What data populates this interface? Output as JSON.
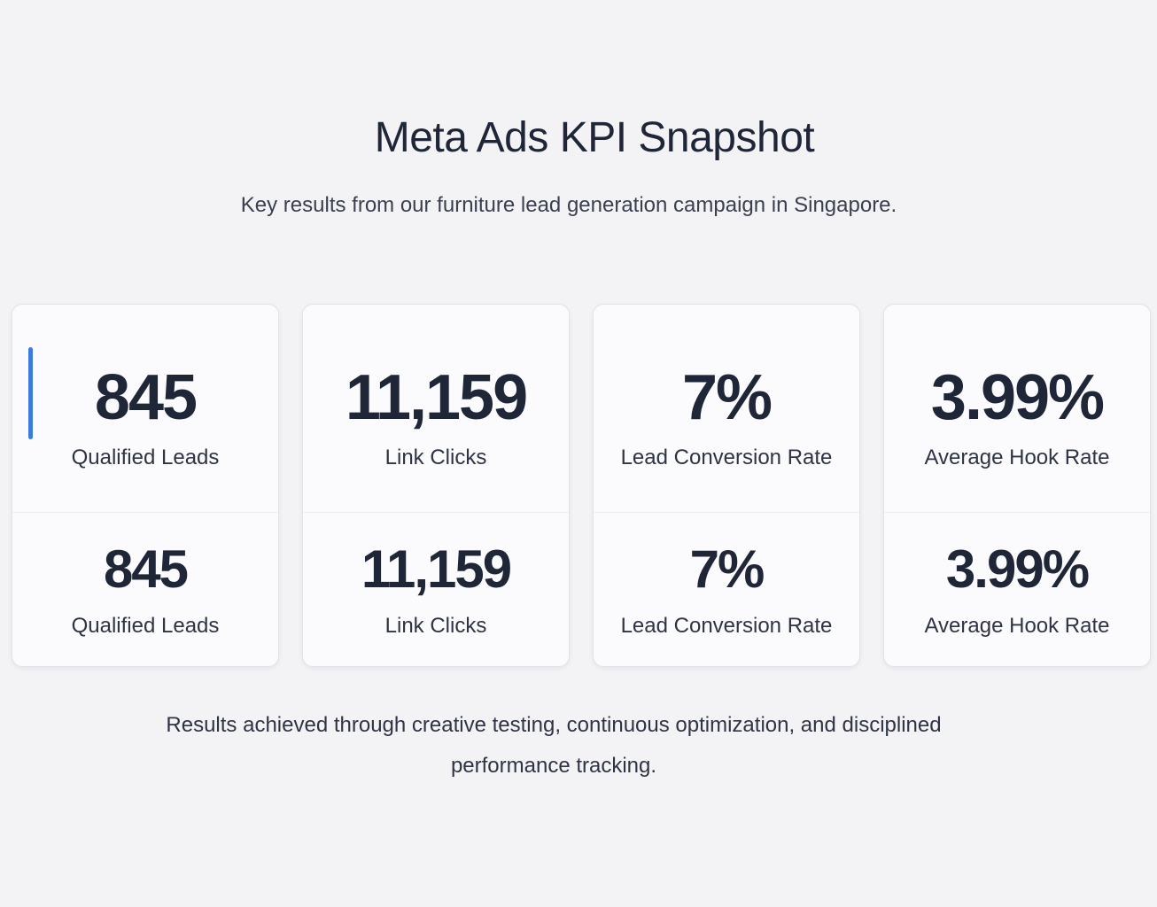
{
  "header": {
    "title": "Meta Ads KPI Snapshot",
    "subtitle": "Key results from our furniture lead generation campaign in Singapore."
  },
  "colors": {
    "accent": "#3b7be0",
    "background": "#f3f3f6",
    "text": "#1f2638"
  },
  "cards": [
    {
      "top": {
        "value": "845",
        "label": "Qualified Leads"
      },
      "bottom": {
        "value": "845",
        "label": "Qualified Leads"
      }
    },
    {
      "top": {
        "value": "11,159",
        "label": "Link Clicks"
      },
      "bottom": {
        "value": "11,159",
        "label": "Link Clicks"
      }
    },
    {
      "top": {
        "value": "7%",
        "label": "Lead Conversion Rate"
      },
      "bottom": {
        "value": "7%",
        "label": "Lead Conversion Rate"
      }
    },
    {
      "top": {
        "value": "3.99%",
        "label": "Average Hook Rate"
      },
      "bottom": {
        "value": "3.99%",
        "label": "Average Hook Rate"
      }
    }
  ],
  "footer": {
    "text": "Results achieved through creative testing, continuous optimization, and disciplined performance tracking."
  }
}
